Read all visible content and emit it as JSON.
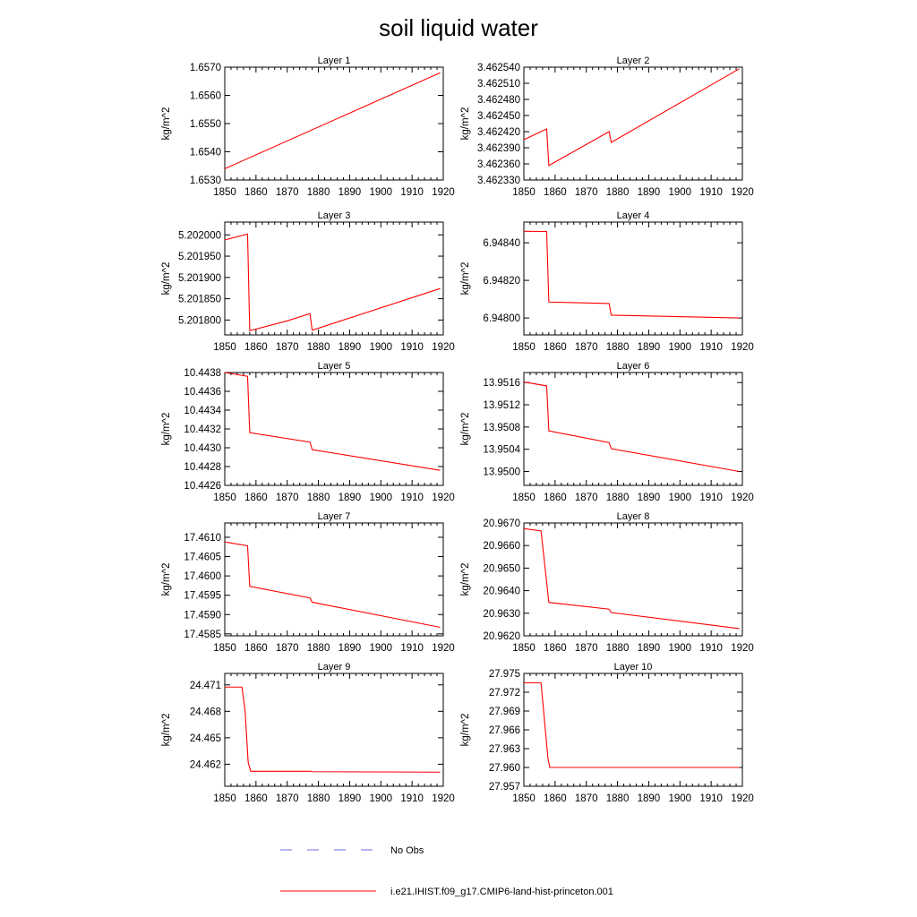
{
  "figure": {
    "title": "soil liquid water",
    "legend": [
      {
        "label": "No Obs",
        "color": "#6a6ae6",
        "dash": true
      },
      {
        "label": "i.e21.IHIST.f09_g17.CMIP6-land-hist-princeton.001",
        "color": "#ff0000",
        "dash": false
      }
    ]
  },
  "chart_data": [
    {
      "type": "line",
      "title": "Layer 1",
      "ylabel": "kg/m^2",
      "xlim": [
        1850,
        1920
      ],
      "xticks": [
        1850,
        1860,
        1870,
        1880,
        1890,
        1900,
        1910,
        1920
      ],
      "ylim": [
        1.653,
        1.657
      ],
      "yticks": [
        1.653,
        1.654,
        1.655,
        1.656,
        1.657
      ],
      "yticklabels": [
        "1.6530",
        "1.6540",
        "1.6550",
        "1.6560",
        "1.6570"
      ],
      "series": [
        {
          "color": "#ff0000",
          "points": [
            [
              1850,
              1.6534
            ],
            [
              1919,
              1.6568
            ]
          ]
        }
      ]
    },
    {
      "type": "line",
      "title": "Layer 2",
      "ylabel": "kg/m^2",
      "xlim": [
        1850,
        1920
      ],
      "xticks": [
        1850,
        1860,
        1870,
        1880,
        1890,
        1900,
        1910,
        1920
      ],
      "ylim": [
        3.46233,
        3.46254
      ],
      "yticks": [
        3.46233,
        3.46236,
        3.46239,
        3.46242,
        3.46245,
        3.46248,
        3.46251,
        3.46254
      ],
      "yticklabels": [
        "3.462330",
        "3.462360",
        "3.462390",
        "3.462420",
        "3.462450",
        "3.462480",
        "3.462510",
        "3.462540"
      ],
      "series": [
        {
          "color": "#ff0000",
          "points": [
            [
              1850,
              3.462405
            ],
            [
              1857.3,
              3.462425
            ],
            [
              1858,
              3.462357
            ],
            [
              1877.3,
              3.46242
            ],
            [
              1878,
              3.4624
            ],
            [
              1919,
              3.462537
            ]
          ]
        }
      ]
    },
    {
      "type": "line",
      "title": "Layer 3",
      "ylabel": "kg/m^2",
      "xlim": [
        1850,
        1920
      ],
      "xticks": [
        1850,
        1860,
        1870,
        1880,
        1890,
        1900,
        1910,
        1920
      ],
      "ylim": [
        5.201765,
        5.20203
      ],
      "yticks": [
        5.2018,
        5.20185,
        5.2019,
        5.20195,
        5.202
      ],
      "yticklabels": [
        "5.201800",
        "5.201850",
        "5.201900",
        "5.201950",
        "5.202000"
      ],
      "series": [
        {
          "color": "#ff0000",
          "points": [
            [
              1850,
              5.201988
            ],
            [
              1857.3,
              5.202002
            ],
            [
              1858,
              5.201775
            ],
            [
              1870,
              5.201798
            ],
            [
              1877.3,
              5.201815
            ],
            [
              1878,
              5.201776
            ],
            [
              1919,
              5.201874
            ]
          ]
        }
      ]
    },
    {
      "type": "line",
      "title": "Layer 4",
      "ylabel": "kg/m^2",
      "xlim": [
        1850,
        1920
      ],
      "xticks": [
        1850,
        1860,
        1870,
        1880,
        1890,
        1900,
        1910,
        1920
      ],
      "ylim": [
        6.94791,
        6.94851
      ],
      "yticks": [
        6.948,
        6.9482,
        6.9484
      ],
      "yticklabels": [
        "6.94800",
        "6.94820",
        "6.94840"
      ],
      "series": [
        {
          "color": "#ff0000",
          "points": [
            [
              1850,
              6.948461
            ],
            [
              1857.3,
              6.94846
            ],
            [
              1858,
              6.948085
            ],
            [
              1877.3,
              6.948077
            ],
            [
              1878,
              6.948015
            ],
            [
              1919,
              6.948
            ]
          ]
        }
      ]
    },
    {
      "type": "line",
      "title": "Layer 5",
      "ylabel": "kg/m^2",
      "xlim": [
        1850,
        1920
      ],
      "xticks": [
        1850,
        1860,
        1870,
        1880,
        1890,
        1900,
        1910,
        1920
      ],
      "ylim": [
        10.4426,
        10.4438
      ],
      "yticks": [
        10.4426,
        10.4428,
        10.443,
        10.4432,
        10.4434,
        10.4436,
        10.4438
      ],
      "yticklabels": [
        "10.4426",
        "10.4428",
        "10.4430",
        "10.4432",
        "10.4434",
        "10.4436",
        "10.4438"
      ],
      "series": [
        {
          "color": "#ff0000",
          "points": [
            [
              1850,
              10.4438
            ],
            [
              1857.3,
              10.44376
            ],
            [
              1858,
              10.44316
            ],
            [
              1877.3,
              10.44306
            ],
            [
              1878,
              10.44298
            ],
            [
              1919,
              10.44276
            ]
          ]
        }
      ]
    },
    {
      "type": "line",
      "title": "Layer 6",
      "ylabel": "kg/m^2",
      "xlim": [
        1850,
        1920
      ],
      "xticks": [
        1850,
        1860,
        1870,
        1880,
        1890,
        1900,
        1910,
        1920
      ],
      "ylim": [
        13.94975,
        13.95178
      ],
      "yticks": [
        13.95,
        13.9504,
        13.9508,
        13.9512,
        13.9516
      ],
      "yticklabels": [
        "13.9500",
        "13.9504",
        "13.9508",
        "13.9512",
        "13.9516"
      ],
      "series": [
        {
          "color": "#ff0000",
          "points": [
            [
              1850,
              13.95161
            ],
            [
              1857.3,
              13.95154
            ],
            [
              1858,
              13.95073
            ],
            [
              1877.3,
              13.95052
            ],
            [
              1878,
              13.95041
            ],
            [
              1919,
              13.95
            ]
          ]
        }
      ]
    },
    {
      "type": "line",
      "title": "Layer 7",
      "ylabel": "kg/m^2",
      "xlim": [
        1850,
        1920
      ],
      "xticks": [
        1850,
        1860,
        1870,
        1880,
        1890,
        1900,
        1910,
        1920
      ],
      "ylim": [
        17.45845,
        17.46137
      ],
      "yticks": [
        17.4585,
        17.459,
        17.4595,
        17.46,
        17.4605,
        17.461
      ],
      "yticklabels": [
        "17.4585",
        "17.4590",
        "17.4595",
        "17.4600",
        "17.4605",
        "17.4610"
      ],
      "series": [
        {
          "color": "#ff0000",
          "points": [
            [
              1850,
              17.46088
            ],
            [
              1857.3,
              17.46078
            ],
            [
              1858,
              17.45973
            ],
            [
              1877.3,
              17.45943
            ],
            [
              1878,
              17.45932
            ],
            [
              1919,
              17.45867
            ]
          ]
        }
      ]
    },
    {
      "type": "line",
      "title": "Layer 8",
      "ylabel": "kg/m^2",
      "xlim": [
        1850,
        1920
      ],
      "xticks": [
        1850,
        1860,
        1870,
        1880,
        1890,
        1900,
        1910,
        1920
      ],
      "ylim": [
        20.962,
        20.967
      ],
      "yticks": [
        20.962,
        20.963,
        20.964,
        20.965,
        20.966,
        20.967
      ],
      "yticklabels": [
        "20.9620",
        "20.9630",
        "20.9640",
        "20.9650",
        "20.9660",
        "20.9670"
      ],
      "series": [
        {
          "color": "#ff0000",
          "points": [
            [
              1850,
              20.96675
            ],
            [
              1855.5,
              20.96665
            ],
            [
              1858,
              20.96348
            ],
            [
              1877.3,
              20.96318
            ],
            [
              1878,
              20.96303
            ],
            [
              1919,
              20.96232
            ]
          ]
        }
      ]
    },
    {
      "type": "line",
      "title": "Layer 9",
      "ylabel": "kg/m^2",
      "xlim": [
        1850,
        1920
      ],
      "xticks": [
        1850,
        1860,
        1870,
        1880,
        1890,
        1900,
        1910,
        1920
      ],
      "ylim": [
        24.4595,
        24.4723
      ],
      "yticks": [
        24.462,
        24.465,
        24.468,
        24.471
      ],
      "yticklabels": [
        "24.462",
        "24.465",
        "24.468",
        "24.471"
      ],
      "series": [
        {
          "color": "#ff0000",
          "points": [
            [
              1850,
              24.47075
            ],
            [
              1855.5,
              24.47075
            ],
            [
              1856.5,
              24.4681
            ],
            [
              1857.5,
              24.4622
            ],
            [
              1858.3,
              24.4612
            ],
            [
              1877.5,
              24.4612
            ],
            [
              1878,
              24.46115
            ],
            [
              1919,
              24.4611
            ]
          ]
        }
      ]
    },
    {
      "type": "line",
      "title": "Layer 10",
      "ylabel": "kg/m^2",
      "xlim": [
        1850,
        1920
      ],
      "xticks": [
        1850,
        1860,
        1870,
        1880,
        1890,
        1900,
        1910,
        1920
      ],
      "ylim": [
        27.957,
        27.975
      ],
      "yticks": [
        27.957,
        27.96,
        27.963,
        27.966,
        27.969,
        27.972,
        27.975
      ],
      "yticklabels": [
        "27.957",
        "27.960",
        "27.963",
        "27.966",
        "27.969",
        "27.972",
        "27.975"
      ],
      "series": [
        {
          "color": "#ff0000",
          "points": [
            [
              1850,
              27.9735
            ],
            [
              1855.5,
              27.9735
            ],
            [
              1857.7,
              27.9615
            ],
            [
              1858.3,
              27.96
            ],
            [
              1919,
              27.96
            ]
          ]
        }
      ]
    }
  ]
}
